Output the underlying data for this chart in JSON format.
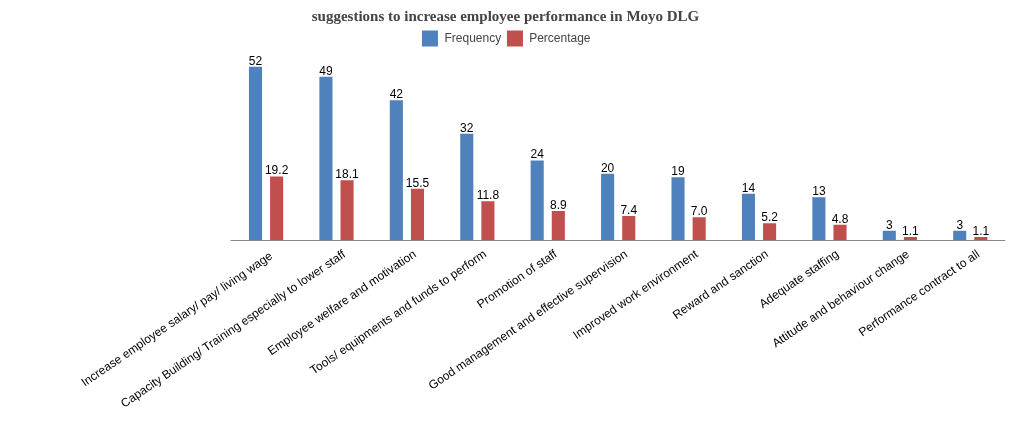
{
  "chart_data": {
    "type": "bar",
    "title": "suggestions to increase employee performance in Moyo DLG",
    "categories": [
      "Increase employee salary/  pay/ living wage",
      "Capacity Building/ Training especially to lower staff",
      "Employee welfare and motivation",
      "Tools/ equipments and funds to perform",
      "Promotion of staff",
      "Good management and effective supervision",
      "Improved work environment",
      "Reward and sanction",
      "Adequate staffing",
      "Attitude and behaviour change",
      "Performance contract to all"
    ],
    "series": [
      {
        "name": "Frequency",
        "color": "#4f81bd",
        "values": [
          52,
          49,
          42,
          32,
          24,
          20,
          19,
          14,
          13,
          3,
          3
        ]
      },
      {
        "name": "Percentage",
        "color": "#c0504d",
        "values": [
          19.2,
          18.1,
          15.5,
          11.8,
          8.9,
          7.4,
          7.0,
          5.2,
          4.8,
          1.1,
          1.1
        ],
        "value_labels": [
          "19.2",
          "18.1",
          "15.5",
          "11.8",
          "8.9",
          "7.4",
          "7.0",
          "5.2",
          "4.8",
          "1.1",
          "1.1"
        ]
      }
    ],
    "data_labels": true,
    "legend": "top"
  }
}
